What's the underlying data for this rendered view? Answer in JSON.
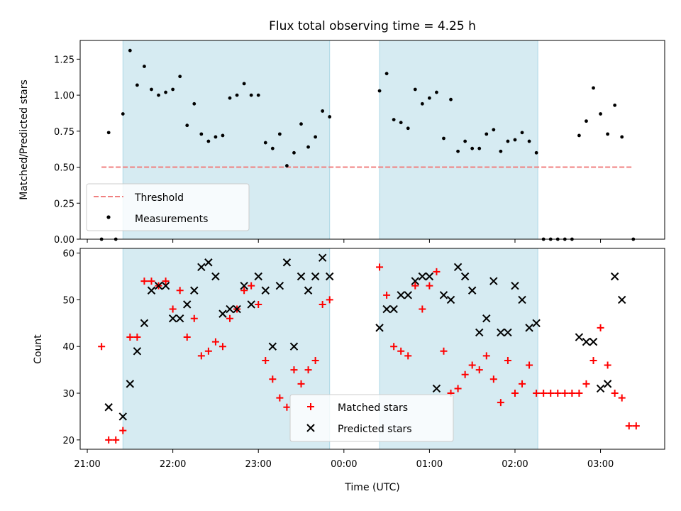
{
  "title": "Flux total observing time = 4.25 h",
  "colors": {
    "shade": "#add8e6",
    "threshold": "#f08080",
    "matched": "#ff0000",
    "predicted": "#000000",
    "measurement": "#000000"
  },
  "chart_data": [
    {
      "type": "scatter",
      "ylabel": "Matched/Predicted stars",
      "ylim": [
        0,
        1.38
      ],
      "yticks": [
        0,
        0.25,
        0.5,
        0.75,
        1.0,
        1.25
      ],
      "ytick_labels": [
        "0.00",
        "0.25",
        "0.50",
        "0.75",
        "1.00",
        "1.25"
      ],
      "shaded_intervals": [
        [
          "21:25",
          "23:50"
        ],
        [
          "00:25",
          "02:16"
        ]
      ],
      "legend": {
        "position": "lower left",
        "entries": [
          "Threshold",
          "Measurements"
        ]
      },
      "threshold": {
        "name": "Threshold",
        "value": 0.5,
        "x_start": "21:10",
        "x_end": "03:23"
      },
      "measurements": {
        "name": "Measurements",
        "x": [
          "21:10",
          "21:15",
          "21:20",
          "21:25",
          "21:30",
          "21:35",
          "21:40",
          "21:45",
          "21:50",
          "21:55",
          "22:00",
          "22:05",
          "22:10",
          "22:15",
          "22:20",
          "22:25",
          "22:30",
          "22:35",
          "22:40",
          "22:45",
          "22:50",
          "22:55",
          "23:00",
          "23:05",
          "23:10",
          "23:15",
          "23:20",
          "23:25",
          "23:30",
          "23:35",
          "23:40",
          "23:45",
          "23:50",
          "00:25",
          "00:30",
          "00:35",
          "00:40",
          "00:45",
          "00:50",
          "00:55",
          "01:00",
          "01:05",
          "01:10",
          "01:15",
          "01:20",
          "01:25",
          "01:30",
          "01:35",
          "01:40",
          "01:45",
          "01:50",
          "01:55",
          "02:00",
          "02:05",
          "02:10",
          "02:15",
          "02:20",
          "02:25",
          "02:30",
          "02:35",
          "02:40",
          "02:45",
          "02:50",
          "02:55",
          "03:00",
          "03:05",
          "03:10",
          "03:15",
          "03:23"
        ],
        "y": [
          0.0,
          0.74,
          0.0,
          0.87,
          1.31,
          1.07,
          1.2,
          1.04,
          1.0,
          1.02,
          1.04,
          1.13,
          0.79,
          0.94,
          0.73,
          0.68,
          0.71,
          0.72,
          0.98,
          1.0,
          1.08,
          1.0,
          1.0,
          0.67,
          0.63,
          0.73,
          0.51,
          0.6,
          0.8,
          0.64,
          0.71,
          0.89,
          0.85,
          1.03,
          1.15,
          0.83,
          0.81,
          0.77,
          1.04,
          0.94,
          0.98,
          1.02,
          0.7,
          0.97,
          0.61,
          0.68,
          0.63,
          0.63,
          0.73,
          0.76,
          0.61,
          0.68,
          0.69,
          0.74,
          0.68,
          0.6,
          0.0,
          0.0,
          0.0,
          0.0,
          0.0,
          0.72,
          0.82,
          1.05,
          0.87,
          0.73,
          0.93,
          0.71,
          0.0
        ]
      },
      "xaxis_shared": true
    },
    {
      "type": "scatter",
      "xlabel": "Time (UTC)",
      "ylabel": "Count",
      "ylim": [
        18,
        61
      ],
      "yticks": [
        20,
        30,
        40,
        50,
        60
      ],
      "ytick_labels": [
        "20",
        "30",
        "40",
        "50",
        "60"
      ],
      "xticks": [
        "21:00",
        "22:00",
        "23:00",
        "00:00",
        "01:00",
        "02:00",
        "03:00"
      ],
      "xtick_offsets_from_21h": [
        0,
        60,
        120,
        180,
        240,
        300,
        360
      ],
      "xlim_minutes_from_21h": [
        -5,
        405
      ],
      "shaded_intervals": [
        [
          "21:25",
          "23:50"
        ],
        [
          "00:25",
          "02:16"
        ]
      ],
      "legend": {
        "position": "lower center",
        "entries": [
          "Matched stars",
          "Predicted stars"
        ]
      },
      "series": [
        {
          "name": "Matched stars",
          "marker": "+",
          "x": [
            "21:10",
            "21:15",
            "21:20",
            "21:25",
            "21:30",
            "21:35",
            "21:40",
            "21:45",
            "21:50",
            "21:55",
            "22:00",
            "22:05",
            "22:10",
            "22:15",
            "22:20",
            "22:25",
            "22:30",
            "22:35",
            "22:40",
            "22:45",
            "22:50",
            "22:55",
            "23:00",
            "23:05",
            "23:10",
            "23:15",
            "23:20",
            "23:25",
            "23:30",
            "23:35",
            "23:40",
            "23:45",
            "23:50",
            "00:25",
            "00:30",
            "00:35",
            "00:40",
            "00:45",
            "00:50",
            "00:55",
            "01:00",
            "01:05",
            "01:10",
            "01:15",
            "01:20",
            "01:25",
            "01:30",
            "01:35",
            "01:40",
            "01:45",
            "01:50",
            "01:55",
            "02:00",
            "02:05",
            "02:10",
            "02:15",
            "02:20",
            "02:25",
            "02:30",
            "02:35",
            "02:40",
            "02:45",
            "02:50",
            "02:55",
            "03:00",
            "03:05",
            "03:10",
            "03:15",
            "03:20",
            "03:25"
          ],
          "y": [
            40,
            20,
            20,
            22,
            42,
            42,
            54,
            54,
            53,
            54,
            48,
            52,
            42,
            46,
            38,
            39,
            41,
            40,
            46,
            48,
            52,
            53,
            49,
            37,
            33,
            29,
            27,
            35,
            32,
            35,
            37,
            49,
            50,
            57,
            51,
            40,
            39,
            38,
            53,
            48,
            53,
            56,
            39,
            30,
            31,
            34,
            36,
            35,
            38,
            33,
            28,
            37,
            30,
            32,
            36,
            30,
            30,
            30,
            30,
            30,
            30,
            30,
            32,
            37,
            44,
            36,
            30,
            29,
            23,
            23
          ]
        },
        {
          "name": "Predicted stars",
          "marker": "x",
          "x": [
            "21:15",
            "21:25",
            "21:30",
            "21:35",
            "21:40",
            "21:45",
            "21:50",
            "21:55",
            "22:00",
            "22:05",
            "22:10",
            "22:15",
            "22:20",
            "22:25",
            "22:30",
            "22:35",
            "22:40",
            "22:45",
            "22:50",
            "22:55",
            "23:00",
            "23:05",
            "23:10",
            "23:15",
            "23:20",
            "23:25",
            "23:30",
            "23:35",
            "23:40",
            "23:45",
            "23:50",
            "00:25",
            "00:30",
            "00:35",
            "00:40",
            "00:45",
            "00:50",
            "00:55",
            "01:00",
            "01:05",
            "01:10",
            "01:15",
            "01:20",
            "01:25",
            "01:30",
            "01:35",
            "01:40",
            "01:45",
            "01:50",
            "01:55",
            "02:00",
            "02:05",
            "02:10",
            "02:15",
            "02:45",
            "02:50",
            "02:55",
            "03:00",
            "03:05",
            "03:10",
            "03:15"
          ],
          "y": [
            27,
            25,
            32,
            39,
            45,
            52,
            53,
            53,
            46,
            46,
            49,
            52,
            57,
            58,
            55,
            47,
            48,
            48,
            53,
            49,
            55,
            52,
            40,
            53,
            58,
            40,
            55,
            52,
            55,
            59,
            55,
            44,
            48,
            48,
            51,
            51,
            54,
            55,
            55,
            31,
            51,
            50,
            57,
            55,
            52,
            43,
            46,
            54,
            43,
            43,
            53,
            50,
            44,
            45,
            42,
            41,
            41,
            31,
            32,
            55,
            50
          ]
        }
      ]
    }
  ]
}
